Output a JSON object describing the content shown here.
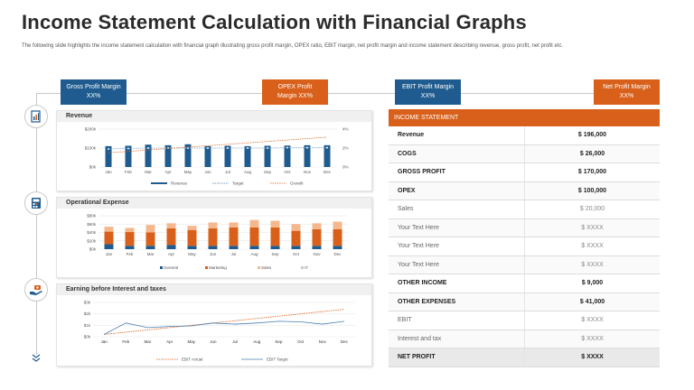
{
  "header": {
    "title": "Income Statement Calculation with Financial Graphs",
    "subtitle": "The following slide highlights the income statement calculation with financial graph illustrating gross profit margin, OPEX  ratio, EBIT  margin,  net profit  margin and income statement describing revenue, gross profit, net profit etc."
  },
  "kpis": [
    {
      "line1": "Gross Profit Margin",
      "line2": "XX%",
      "color": "#1f5b8e"
    },
    {
      "line1": "OPEX Profit",
      "line2": "Margin XX%",
      "color": "#d9601a"
    },
    {
      "line1": "EBIT Profit Margin",
      "line2": "XX%",
      "color": "#1f5b8e"
    },
    {
      "line1": "Net Profit Margin",
      "line2": "XX%",
      "color": "#d9601a"
    }
  ],
  "icons": [
    "document-chart-icon",
    "calculator-icon",
    "hand-money-icon",
    "chevron-double-down-icon"
  ],
  "colors": {
    "blue": "#1f5b8e",
    "orange": "#d9601a",
    "light_orange": "#f5b88e",
    "blue_line": "#4a7fb5"
  },
  "chart_data": [
    {
      "type": "bar",
      "title": "Revenue",
      "categories": [
        "Jan",
        "Feb",
        "Mar",
        "Apr",
        "May",
        "Jun",
        "Jul",
        "Aug",
        "Sep",
        "Oct",
        "Nov",
        "Dec"
      ],
      "y_ticks": [
        "$200k",
        "$100k",
        "$0k"
      ],
      "y2_ticks": [
        "4%",
        "2%",
        "0%"
      ],
      "ylim": [
        0,
        200
      ],
      "y2lim": [
        0,
        4
      ],
      "series": [
        {
          "name": "Revenue",
          "kind": "bar",
          "values": [
            110,
            112,
            118,
            115,
            120,
            110,
            112,
            110,
            112,
            113,
            115,
            115
          ]
        },
        {
          "name": "Target",
          "kind": "line",
          "values": [
            95,
            98,
            100,
            100,
            100,
            100,
            100,
            100,
            100,
            102,
            102,
            102
          ]
        },
        {
          "name": "Growth",
          "kind": "line",
          "axis": "secondary",
          "values": [
            1.5,
            1.65,
            1.8,
            1.95,
            2.1,
            2.25,
            2.4,
            2.55,
            2.7,
            2.85,
            3.0,
            3.15
          ]
        }
      ]
    },
    {
      "type": "bar",
      "title": "Operational Expense",
      "categories": [
        "Jan",
        "Feb",
        "Mar",
        "Apr",
        "May",
        "Jun",
        "Jul",
        "Aug",
        "Sep",
        "Oct",
        "Nov",
        "Dec"
      ],
      "y_ticks": [
        "$80k",
        "$60k",
        "$40k",
        "$20k",
        "$0k"
      ],
      "ylim": [
        0,
        80
      ],
      "stacked": true,
      "series": [
        {
          "name": "General",
          "values": [
            12,
            8,
            8,
            10,
            8,
            8,
            8,
            8,
            8,
            8,
            8,
            8
          ]
        },
        {
          "name": "Marketing",
          "values": [
            30,
            33,
            32,
            40,
            38,
            42,
            44,
            44,
            44,
            36,
            40,
            40
          ]
        },
        {
          "name": "Sales",
          "values": [
            12,
            10,
            18,
            12,
            10,
            14,
            12,
            18,
            16,
            16,
            14,
            18
          ]
        },
        {
          "name": "IT",
          "values": [
            0,
            0,
            0,
            0,
            0,
            0,
            0,
            0,
            0,
            0,
            0,
            0
          ]
        }
      ]
    },
    {
      "type": "line",
      "title": "Earning before Interest and taxes",
      "categories": [
        "Jan",
        "Feb",
        "Mar",
        "Apr",
        "May",
        "Jun",
        "Jul",
        "Aug",
        "Sep",
        "Oct",
        "Nov",
        "Dec"
      ],
      "y_ticks": [
        "$3k",
        "$2k",
        "$1k",
        "$0k"
      ],
      "ylim": [
        0,
        3
      ],
      "series": [
        {
          "name": "EBIT Actual",
          "values": [
            0.2,
            0.4,
            0.6,
            0.8,
            1.0,
            1.2,
            1.4,
            1.6,
            1.8,
            2.0,
            2.2,
            2.4
          ]
        },
        {
          "name": "EBIT Target",
          "values": [
            0.2,
            1.2,
            0.8,
            0.9,
            0.95,
            1.2,
            1.1,
            1.2,
            1.35,
            1.3,
            1.1,
            1.35
          ]
        }
      ]
    }
  ],
  "income_statement": {
    "header": "INCOME STATEMENT",
    "rows": [
      {
        "label": "Revenue",
        "value": "$ 196,000",
        "style": "bold"
      },
      {
        "label": "COGS",
        "value": "$  26,000",
        "style": "bold"
      },
      {
        "label": "GROSS PROFIT",
        "value": "$ 170,000",
        "style": "bold"
      },
      {
        "label": "OPEX",
        "value": "$ 100,000",
        "style": "bold"
      },
      {
        "label": "Sales",
        "value": "$ 20,000",
        "style": "muted"
      },
      {
        "label": "Your Text Here",
        "value": "$ XXXX",
        "style": "muted"
      },
      {
        "label": "Your Text Here",
        "value": "$ XXXX",
        "style": "muted"
      },
      {
        "label": "Your Text Here",
        "value": "$ XXXX",
        "style": "muted"
      },
      {
        "label": "OTHER INCOME",
        "value": "$  9,000",
        "style": "bold"
      },
      {
        "label": "OTHER EXPENSES",
        "value": "$ 41,000",
        "style": "bold"
      },
      {
        "label": "EBIT",
        "value": "$ XXXX",
        "style": "muted"
      },
      {
        "label": "Interest and tax",
        "value": "$ XXXX",
        "style": "muted"
      },
      {
        "label": "NET PROFIT",
        "value": "$ XXXX",
        "style": "bold"
      }
    ]
  }
}
